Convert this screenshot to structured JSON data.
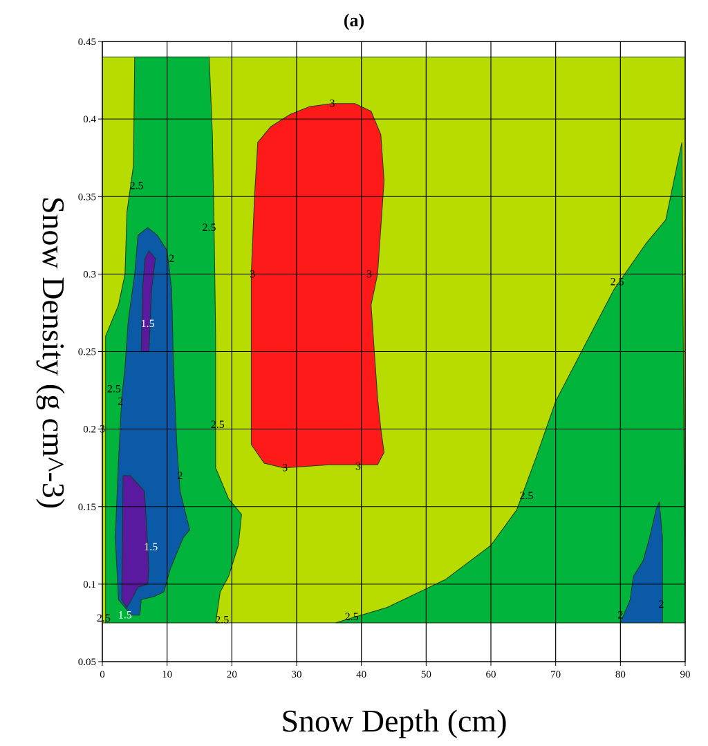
{
  "chart_data": {
    "type": "contour",
    "panel_label": "(a)",
    "xlabel": "Snow Depth (cm)",
    "ylabel": "Snow Density (g cm^-3)",
    "xlim": [
      0,
      90
    ],
    "ylim": [
      0.05,
      0.45
    ],
    "x_ticks": [
      "0",
      "10",
      "20",
      "30",
      "40",
      "50",
      "60",
      "70",
      "80",
      "90"
    ],
    "y_ticks": [
      "0.05",
      "0.1",
      "0.15",
      "0.2",
      "0.25",
      "0.3",
      "0.35",
      "0.4",
      "0.45"
    ],
    "grid": true,
    "data_extent": {
      "x": [
        0,
        90
      ],
      "y": [
        0.075,
        0.44
      ]
    },
    "levels": [
      {
        "name": "<1.5",
        "color": "#5a1aa0"
      },
      {
        "name": "1.5-2",
        "color": "#0a5aa8"
      },
      {
        "name": "2-2.5",
        "color": "#00b43c"
      },
      {
        "name": "2.5-3",
        "color": "#b9dc00"
      },
      {
        "name": ">3",
        "color": "#ff1a1a"
      }
    ],
    "regions": [
      {
        "level": "2.5-3",
        "points": [
          [
            0,
            0.075
          ],
          [
            90,
            0.075
          ],
          [
            90,
            0.44
          ],
          [
            0,
            0.44
          ]
        ]
      },
      {
        "level": "2-2.5",
        "points": [
          [
            0.5,
            0.075
          ],
          [
            0.5,
            0.26
          ],
          [
            2.5,
            0.28
          ],
          [
            3.5,
            0.3
          ],
          [
            3.8,
            0.34
          ],
          [
            4.8,
            0.37
          ],
          [
            5,
            0.44
          ],
          [
            16.5,
            0.44
          ],
          [
            17,
            0.39
          ],
          [
            17.3,
            0.32
          ],
          [
            17.5,
            0.26
          ],
          [
            17.5,
            0.175
          ],
          [
            19.5,
            0.155
          ],
          [
            21.5,
            0.145
          ],
          [
            21,
            0.125
          ],
          [
            19.5,
            0.105
          ],
          [
            18.2,
            0.095
          ],
          [
            17.5,
            0.075
          ]
        ]
      },
      {
        "level": "2-2.5",
        "points": [
          [
            36,
            0.075
          ],
          [
            44,
            0.085
          ],
          [
            53,
            0.103
          ],
          [
            60,
            0.125
          ],
          [
            64,
            0.148
          ],
          [
            67,
            0.182
          ],
          [
            70,
            0.218
          ],
          [
            74,
            0.25
          ],
          [
            79,
            0.29
          ],
          [
            84,
            0.32
          ],
          [
            87,
            0.335
          ],
          [
            89.5,
            0.385
          ],
          [
            90,
            0.075
          ]
        ]
      },
      {
        "level": "1.5-2",
        "points": [
          [
            2.5,
            0.09
          ],
          [
            2,
            0.13
          ],
          [
            2.5,
            0.18
          ],
          [
            3,
            0.22
          ],
          [
            3.5,
            0.24
          ],
          [
            4,
            0.27
          ],
          [
            5,
            0.3
          ],
          [
            5.5,
            0.325
          ],
          [
            7,
            0.33
          ],
          [
            8.5,
            0.325
          ],
          [
            10,
            0.315
          ],
          [
            10.7,
            0.29
          ],
          [
            11,
            0.24
          ],
          [
            11.5,
            0.19
          ],
          [
            12,
            0.16
          ],
          [
            13.5,
            0.135
          ],
          [
            12.5,
            0.13
          ],
          [
            10.5,
            0.11
          ],
          [
            9.5,
            0.095
          ],
          [
            8,
            0.092
          ],
          [
            6,
            0.09
          ],
          [
            5.8,
            0.08
          ],
          [
            4.5,
            0.08
          ],
          [
            3.5,
            0.085
          ]
        ]
      },
      {
        "level": "1.5-2",
        "points": [
          [
            80,
            0.075
          ],
          [
            81.5,
            0.09
          ],
          [
            82,
            0.105
          ],
          [
            83.5,
            0.115
          ],
          [
            84.5,
            0.13
          ],
          [
            85.5,
            0.148
          ],
          [
            86,
            0.153
          ],
          [
            86.5,
            0.13
          ],
          [
            86.5,
            0.075
          ]
        ]
      },
      {
        "level": "<1.5",
        "points": [
          [
            6,
            0.25
          ],
          [
            7.2,
            0.25
          ],
          [
            7.6,
            0.29
          ],
          [
            8.2,
            0.31
          ],
          [
            7.2,
            0.315
          ],
          [
            6.6,
            0.31
          ],
          [
            6.2,
            0.29
          ]
        ]
      },
      {
        "level": "<1.5",
        "points": [
          [
            3.2,
            0.17
          ],
          [
            4.3,
            0.17
          ],
          [
            6.5,
            0.16
          ],
          [
            6.8,
            0.14
          ],
          [
            7.2,
            0.11
          ],
          [
            7,
            0.1
          ],
          [
            5.5,
            0.098
          ],
          [
            4.5,
            0.09
          ],
          [
            3.8,
            0.085
          ],
          [
            3,
            0.09
          ]
        ]
      },
      {
        "level": ">3",
        "points": [
          [
            24,
            0.385
          ],
          [
            26,
            0.395
          ],
          [
            29,
            0.403
          ],
          [
            32,
            0.408
          ],
          [
            35.5,
            0.41
          ],
          [
            39,
            0.41
          ],
          [
            41.5,
            0.405
          ],
          [
            43,
            0.39
          ],
          [
            43.5,
            0.36
          ],
          [
            43,
            0.33
          ],
          [
            42.5,
            0.3
          ],
          [
            41.5,
            0.28
          ],
          [
            42,
            0.25
          ],
          [
            42.5,
            0.22
          ],
          [
            43,
            0.2
          ],
          [
            43.5,
            0.185
          ],
          [
            42.5,
            0.177
          ],
          [
            39,
            0.177
          ],
          [
            35,
            0.177
          ],
          [
            28,
            0.175
          ],
          [
            25,
            0.178
          ],
          [
            23,
            0.19
          ],
          [
            23,
            0.25
          ],
          [
            23,
            0.3
          ],
          [
            23.5,
            0.35
          ]
        ]
      }
    ],
    "contour_labels": [
      {
        "text": "3",
        "x": 35.5,
        "y": 0.41
      },
      {
        "text": "3",
        "x": 23.2,
        "y": 0.3
      },
      {
        "text": "3",
        "x": 41.2,
        "y": 0.3
      },
      {
        "text": "3",
        "x": 28.2,
        "y": 0.175
      },
      {
        "text": "3",
        "x": 39.5,
        "y": 0.176
      },
      {
        "text": "2.5",
        "x": 5.3,
        "y": 0.357
      },
      {
        "text": "2.5",
        "x": 16.5,
        "y": 0.33
      },
      {
        "text": "2.5",
        "x": 1.8,
        "y": 0.226
      },
      {
        "text": "2.5",
        "x": 17.8,
        "y": 0.203
      },
      {
        "text": "2.5",
        "x": 0.2,
        "y": 0.078
      },
      {
        "text": "2.5",
        "x": 18.5,
        "y": 0.077
      },
      {
        "text": "2.5",
        "x": 38.5,
        "y": 0.079
      },
      {
        "text": "2.5",
        "x": 65.5,
        "y": 0.157
      },
      {
        "text": "2.5",
        "x": 79.5,
        "y": 0.295
      },
      {
        "text": "3",
        "x": 0,
        "y": 0.2
      },
      {
        "text": "2",
        "x": 10.7,
        "y": 0.31
      },
      {
        "text": "2",
        "x": 2.8,
        "y": 0.218
      },
      {
        "text": "2",
        "x": 12,
        "y": 0.17
      },
      {
        "text": "2",
        "x": 80,
        "y": 0.08
      },
      {
        "text": "2",
        "x": 86.3,
        "y": 0.087
      },
      {
        "text": "1.5",
        "x": 7,
        "y": 0.268
      },
      {
        "text": "1.5",
        "x": 7.5,
        "y": 0.124
      },
      {
        "text": "1.5",
        "x": 3.5,
        "y": 0.08
      }
    ]
  }
}
